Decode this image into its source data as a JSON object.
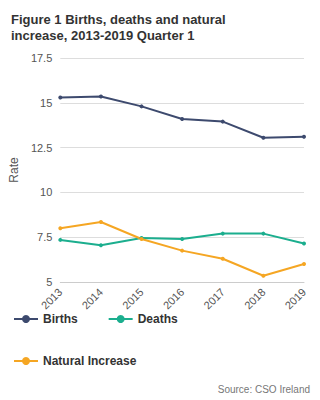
{
  "chart_data": {
    "type": "line",
    "title": "Figure 1 Births, deaths and natural increase, 2013-2019 Quarter 1",
    "y_label": "Rate",
    "source": "Source: CSO Ireland",
    "categories": [
      "2013",
      "2014",
      "2015",
      "2016",
      "2017",
      "2018",
      "2019"
    ],
    "series": [
      {
        "name": "Births",
        "color": "#3d4a6e",
        "values": [
          15.3,
          15.35,
          14.8,
          14.1,
          13.95,
          13.05,
          13.1
        ]
      },
      {
        "name": "Deaths",
        "color": "#1bae8e",
        "values": [
          7.35,
          7.05,
          7.45,
          7.4,
          7.7,
          7.7,
          7.15
        ]
      },
      {
        "name": "Natural Increase",
        "color": "#f5a623",
        "values": [
          8.0,
          8.35,
          7.4,
          6.75,
          6.3,
          5.35,
          6.0
        ]
      }
    ],
    "ylim": [
      5,
      17.5
    ],
    "yticks": [
      5,
      7.5,
      10,
      12.5,
      15,
      17.5
    ],
    "grid": true,
    "legend": "bottom",
    "marker": "circle"
  }
}
